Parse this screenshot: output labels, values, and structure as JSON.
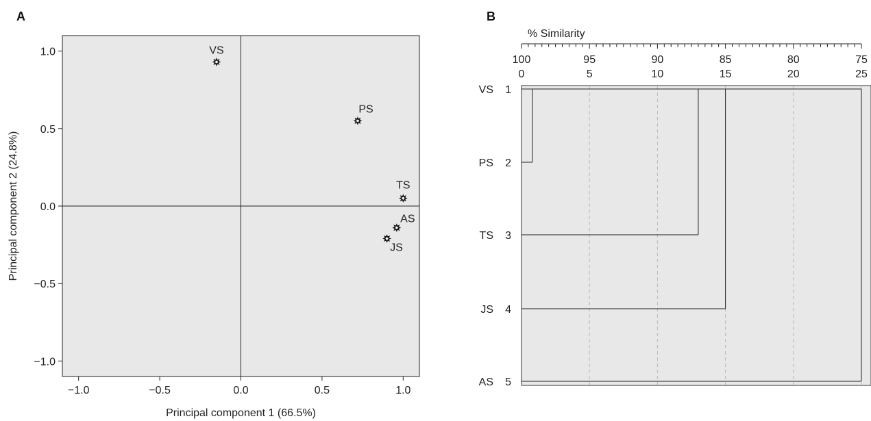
{
  "panels": {
    "a_letter": "A",
    "b_letter": "B"
  },
  "chart_data": [
    {
      "type": "scatter",
      "title": "",
      "xlabel": "Principal component 1 (66.5%)",
      "ylabel": "Principal component 2 (24.8%)",
      "xlim": [
        -1.1,
        1.1
      ],
      "ylim": [
        -1.1,
        1.1
      ],
      "xticks": [
        -1.0,
        -0.5,
        0.0,
        0.5,
        1.0
      ],
      "xtick_labels": [
        "−1.0",
        "−0.5",
        "0.0",
        "0.5",
        "1.0"
      ],
      "yticks": [
        -1.0,
        -0.5,
        0.0,
        0.5,
        1.0
      ],
      "ytick_labels": [
        "−1.0",
        "−0.5",
        "0.0",
        "0.5",
        "1.0"
      ],
      "grid": false,
      "background": "#e8e8e8",
      "points": [
        {
          "label": "VS",
          "x": -0.15,
          "y": 0.93
        },
        {
          "label": "PS",
          "x": 0.72,
          "y": 0.55
        },
        {
          "label": "TS",
          "x": 1.0,
          "y": 0.05
        },
        {
          "label": "AS",
          "x": 0.96,
          "y": -0.14
        },
        {
          "label": "JS",
          "x": 0.9,
          "y": -0.21
        }
      ]
    },
    {
      "type": "dendrogram",
      "title": "% Similarity",
      "similarity_ticks": [
        100,
        95,
        90,
        85,
        80,
        75
      ],
      "distance_ticks": [
        0,
        5,
        10,
        15,
        20,
        25
      ],
      "xlim": [
        0,
        25
      ],
      "background": "#e8e8e8",
      "leaves": [
        {
          "name": "VS",
          "index": "1"
        },
        {
          "name": "PS",
          "index": "2"
        },
        {
          "name": "TS",
          "index": "3"
        },
        {
          "name": "JS",
          "index": "4"
        },
        {
          "name": "AS",
          "index": "5"
        }
      ],
      "merges": [
        {
          "left": "L0",
          "right": "L1",
          "distance": 0.8
        },
        {
          "left": "C0",
          "right": "L2",
          "distance": 13.0
        },
        {
          "left": "C1",
          "right": "L3",
          "distance": 15.0
        },
        {
          "left": "C2",
          "right": "L4",
          "distance": 25.0
        }
      ]
    }
  ]
}
